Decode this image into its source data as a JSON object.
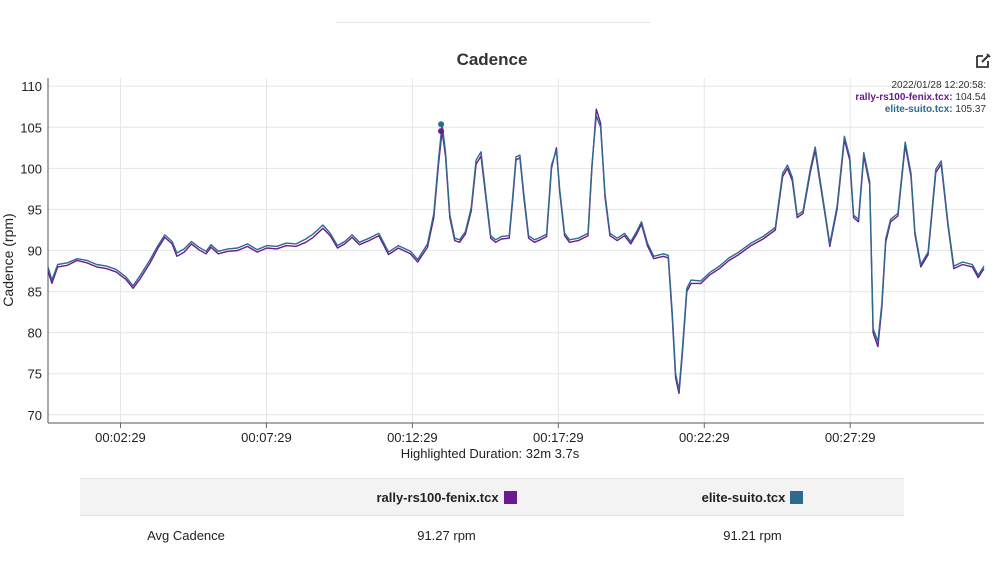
{
  "chart_data": {
    "type": "line",
    "title": "Cadence",
    "ylabel": "Cadence (rpm)",
    "xlabel": "Highlighted Duration: 32m 3.7s",
    "ylim": [
      69,
      111
    ],
    "yticks": [
      70,
      75,
      80,
      85,
      90,
      95,
      100,
      105,
      110
    ],
    "xlim": [
      0,
      1924
    ],
    "xticks": [
      {
        "t": 149,
        "label": "00:02:29"
      },
      {
        "t": 449,
        "label": "00:07:29"
      },
      {
        "t": 749,
        "label": "00:12:29"
      },
      {
        "t": 1049,
        "label": "00:17:29"
      },
      {
        "t": 1349,
        "label": "00:22:29"
      },
      {
        "t": 1649,
        "label": "00:27:29"
      }
    ],
    "grid": true,
    "hover": {
      "timestamp": "2022/01/28 12:20:58:",
      "t": 808,
      "values": [
        {
          "name": "rally-rs100-fenix.tcx:",
          "value": "104.54"
        },
        {
          "name": "elite-suito.tcx:",
          "value": "105.37"
        }
      ]
    },
    "series": [
      {
        "name": "rally-rs100-fenix.tcx",
        "color": "#6a1b8f",
        "points": [
          [
            0,
            87.5
          ],
          [
            8,
            86
          ],
          [
            20,
            88
          ],
          [
            40,
            88.2
          ],
          [
            60,
            88.8
          ],
          [
            80,
            88.5
          ],
          [
            100,
            88
          ],
          [
            120,
            87.8
          ],
          [
            140,
            87.4
          ],
          [
            160,
            86.5
          ],
          [
            175,
            85.4
          ],
          [
            190,
            86.6
          ],
          [
            210,
            88.5
          ],
          [
            225,
            90.2
          ],
          [
            240,
            91.6
          ],
          [
            255,
            90.8
          ],
          [
            265,
            89.3
          ],
          [
            280,
            89.8
          ],
          [
            295,
            90.8
          ],
          [
            310,
            90.1
          ],
          [
            325,
            89.6
          ],
          [
            335,
            90.4
          ],
          [
            350,
            89.6
          ],
          [
            370,
            89.9
          ],
          [
            390,
            90
          ],
          [
            410,
            90.5
          ],
          [
            430,
            89.8
          ],
          [
            450,
            90.3
          ],
          [
            470,
            90.2
          ],
          [
            490,
            90.6
          ],
          [
            510,
            90.5
          ],
          [
            530,
            91
          ],
          [
            545,
            91.6
          ],
          [
            565,
            92.7
          ],
          [
            580,
            91.8
          ],
          [
            595,
            90.3
          ],
          [
            610,
            90.8
          ],
          [
            625,
            91.6
          ],
          [
            640,
            90.7
          ],
          [
            660,
            91.2
          ],
          [
            680,
            91.8
          ],
          [
            700,
            89.5
          ],
          [
            720,
            90.3
          ],
          [
            745,
            89.6
          ],
          [
            760,
            88.6
          ],
          [
            780,
            90.4
          ],
          [
            793,
            94
          ],
          [
            803,
            100.6
          ],
          [
            810,
            104.54
          ],
          [
            817,
            101.5
          ],
          [
            826,
            94
          ],
          [
            836,
            91.2
          ],
          [
            846,
            91
          ],
          [
            858,
            92
          ],
          [
            870,
            94.8
          ],
          [
            880,
            100.5
          ],
          [
            890,
            101.5
          ],
          [
            900,
            96.5
          ],
          [
            910,
            91.5
          ],
          [
            920,
            91
          ],
          [
            932,
            91.4
          ],
          [
            948,
            91.5
          ],
          [
            955,
            96
          ],
          [
            962,
            101
          ],
          [
            970,
            101.3
          ],
          [
            978,
            96.5
          ],
          [
            988,
            91.5
          ],
          [
            1000,
            91
          ],
          [
            1012,
            91.3
          ],
          [
            1025,
            91.7
          ],
          [
            1035,
            100
          ],
          [
            1045,
            102.5
          ],
          [
            1052,
            97
          ],
          [
            1062,
            91.8
          ],
          [
            1072,
            91
          ],
          [
            1090,
            91.2
          ],
          [
            1110,
            91.8
          ],
          [
            1118,
            100
          ],
          [
            1127,
            107.2
          ],
          [
            1136,
            105.5
          ],
          [
            1145,
            96.5
          ],
          [
            1155,
            91.8
          ],
          [
            1170,
            91.2
          ],
          [
            1185,
            91.8
          ],
          [
            1198,
            90.8
          ],
          [
            1210,
            92
          ],
          [
            1220,
            93.2
          ],
          [
            1232,
            90.6
          ],
          [
            1245,
            89
          ],
          [
            1265,
            89.3
          ],
          [
            1275,
            89.1
          ],
          [
            1283,
            82
          ],
          [
            1290,
            74.5
          ],
          [
            1297,
            72.6
          ],
          [
            1304,
            77.5
          ],
          [
            1313,
            85
          ],
          [
            1322,
            86
          ],
          [
            1342,
            86
          ],
          [
            1360,
            87
          ],
          [
            1380,
            87.8
          ],
          [
            1400,
            88.8
          ],
          [
            1420,
            89.5
          ],
          [
            1445,
            90.6
          ],
          [
            1470,
            91.4
          ],
          [
            1495,
            92.5
          ],
          [
            1510,
            99
          ],
          [
            1520,
            100
          ],
          [
            1530,
            98.5
          ],
          [
            1540,
            94
          ],
          [
            1552,
            94.5
          ],
          [
            1567,
            99.5
          ],
          [
            1577,
            102.2
          ],
          [
            1585,
            99
          ],
          [
            1597,
            94.5
          ],
          [
            1607,
            90.5
          ],
          [
            1622,
            95
          ],
          [
            1637,
            103.5
          ],
          [
            1648,
            101
          ],
          [
            1656,
            94
          ],
          [
            1666,
            93.5
          ],
          [
            1677,
            101.5
          ],
          [
            1689,
            98
          ],
          [
            1696,
            80
          ],
          [
            1706,
            78.3
          ],
          [
            1714,
            83
          ],
          [
            1722,
            91
          ],
          [
            1732,
            93.5
          ],
          [
            1747,
            94.2
          ],
          [
            1762,
            102.8
          ],
          [
            1774,
            99
          ],
          [
            1782,
            92
          ],
          [
            1794,
            88
          ],
          [
            1809,
            89.5
          ],
          [
            1825,
            99.5
          ],
          [
            1836,
            100.5
          ],
          [
            1850,
            93
          ],
          [
            1862,
            87.8
          ],
          [
            1880,
            88.3
          ],
          [
            1900,
            88
          ],
          [
            1912,
            86.7
          ],
          [
            1924,
            87.8
          ]
        ]
      },
      {
        "name": "elite-suito.tcx",
        "color": "#2e6a8e",
        "points": [
          [
            0,
            88
          ],
          [
            8,
            86.4
          ],
          [
            20,
            88.3
          ],
          [
            40,
            88.5
          ],
          [
            60,
            89
          ],
          [
            80,
            88.8
          ],
          [
            100,
            88.3
          ],
          [
            120,
            88.1
          ],
          [
            140,
            87.7
          ],
          [
            160,
            86.8
          ],
          [
            175,
            85.7
          ],
          [
            190,
            87
          ],
          [
            210,
            88.9
          ],
          [
            225,
            90.5
          ],
          [
            240,
            91.9
          ],
          [
            255,
            91.1
          ],
          [
            265,
            89.7
          ],
          [
            280,
            90.2
          ],
          [
            295,
            91.1
          ],
          [
            310,
            90.4
          ],
          [
            325,
            89.9
          ],
          [
            335,
            90.7
          ],
          [
            350,
            89.9
          ],
          [
            370,
            90.2
          ],
          [
            390,
            90.3
          ],
          [
            410,
            90.8
          ],
          [
            430,
            90.1
          ],
          [
            450,
            90.6
          ],
          [
            470,
            90.5
          ],
          [
            490,
            90.9
          ],
          [
            510,
            90.8
          ],
          [
            530,
            91.4
          ],
          [
            545,
            92
          ],
          [
            565,
            93.1
          ],
          [
            580,
            92.1
          ],
          [
            595,
            90.6
          ],
          [
            610,
            91.1
          ],
          [
            625,
            91.9
          ],
          [
            640,
            91
          ],
          [
            660,
            91.5
          ],
          [
            680,
            92.1
          ],
          [
            700,
            89.8
          ],
          [
            720,
            90.6
          ],
          [
            745,
            89.9
          ],
          [
            760,
            88.9
          ],
          [
            780,
            90.8
          ],
          [
            793,
            94.5
          ],
          [
            803,
            101.2
          ],
          [
            810,
            105.37
          ],
          [
            817,
            102
          ],
          [
            826,
            94.4
          ],
          [
            836,
            91.5
          ],
          [
            846,
            91.3
          ],
          [
            858,
            92.3
          ],
          [
            870,
            95.2
          ],
          [
            880,
            101
          ],
          [
            890,
            102
          ],
          [
            900,
            96.9
          ],
          [
            910,
            91.8
          ],
          [
            920,
            91.3
          ],
          [
            932,
            91.7
          ],
          [
            948,
            91.8
          ],
          [
            955,
            96.4
          ],
          [
            962,
            101.4
          ],
          [
            970,
            101.6
          ],
          [
            978,
            96.9
          ],
          [
            988,
            91.8
          ],
          [
            1000,
            91.3
          ],
          [
            1012,
            91.6
          ],
          [
            1025,
            92
          ],
          [
            1035,
            100.4
          ],
          [
            1045,
            102.2
          ],
          [
            1052,
            97.3
          ],
          [
            1062,
            92.1
          ],
          [
            1072,
            91.3
          ],
          [
            1090,
            91.5
          ],
          [
            1110,
            92.1
          ],
          [
            1118,
            100.4
          ],
          [
            1127,
            106.4
          ],
          [
            1136,
            105
          ],
          [
            1145,
            96.9
          ],
          [
            1155,
            92.1
          ],
          [
            1170,
            91.5
          ],
          [
            1185,
            92.1
          ],
          [
            1198,
            91.1
          ],
          [
            1210,
            92.3
          ],
          [
            1220,
            93.5
          ],
          [
            1232,
            90.9
          ],
          [
            1245,
            89.3
          ],
          [
            1265,
            89.6
          ],
          [
            1275,
            89.4
          ],
          [
            1283,
            82.5
          ],
          [
            1290,
            75
          ],
          [
            1297,
            73
          ],
          [
            1304,
            78
          ],
          [
            1313,
            85.4
          ],
          [
            1322,
            86.4
          ],
          [
            1342,
            86.3
          ],
          [
            1360,
            87.3
          ],
          [
            1380,
            88.1
          ],
          [
            1400,
            89.1
          ],
          [
            1420,
            89.8
          ],
          [
            1445,
            90.9
          ],
          [
            1470,
            91.7
          ],
          [
            1495,
            92.8
          ],
          [
            1510,
            99.4
          ],
          [
            1520,
            100.4
          ],
          [
            1530,
            98.9
          ],
          [
            1540,
            94.3
          ],
          [
            1552,
            94.8
          ],
          [
            1567,
            99.9
          ],
          [
            1577,
            102.6
          ],
          [
            1585,
            99.4
          ],
          [
            1597,
            94.8
          ],
          [
            1607,
            90.8
          ],
          [
            1622,
            95.4
          ],
          [
            1637,
            103.9
          ],
          [
            1648,
            101.4
          ],
          [
            1656,
            94.3
          ],
          [
            1666,
            93.8
          ],
          [
            1677,
            101.9
          ],
          [
            1689,
            98.4
          ],
          [
            1696,
            80.5
          ],
          [
            1706,
            78.9
          ],
          [
            1714,
            83.5
          ],
          [
            1722,
            91.4
          ],
          [
            1732,
            93.8
          ],
          [
            1747,
            94.5
          ],
          [
            1762,
            103.2
          ],
          [
            1774,
            99.4
          ],
          [
            1782,
            92.3
          ],
          [
            1794,
            88.3
          ],
          [
            1809,
            89.8
          ],
          [
            1825,
            99.9
          ],
          [
            1836,
            100.9
          ],
          [
            1850,
            93.3
          ],
          [
            1862,
            88.1
          ],
          [
            1880,
            88.6
          ],
          [
            1900,
            88.3
          ],
          [
            1912,
            87
          ],
          [
            1924,
            88.1
          ]
        ]
      }
    ]
  },
  "summary": {
    "columns": [
      "",
      "rally-rs100-fenix.tcx",
      "elite-suito.tcx"
    ],
    "rows": [
      {
        "label": "Avg Cadence",
        "values": [
          "91.27 rpm",
          "91.21 rpm"
        ]
      }
    ],
    "colors": [
      "#6a1b8f",
      "#2e6a8e"
    ]
  },
  "icons": {
    "edit": "edit-icon"
  }
}
